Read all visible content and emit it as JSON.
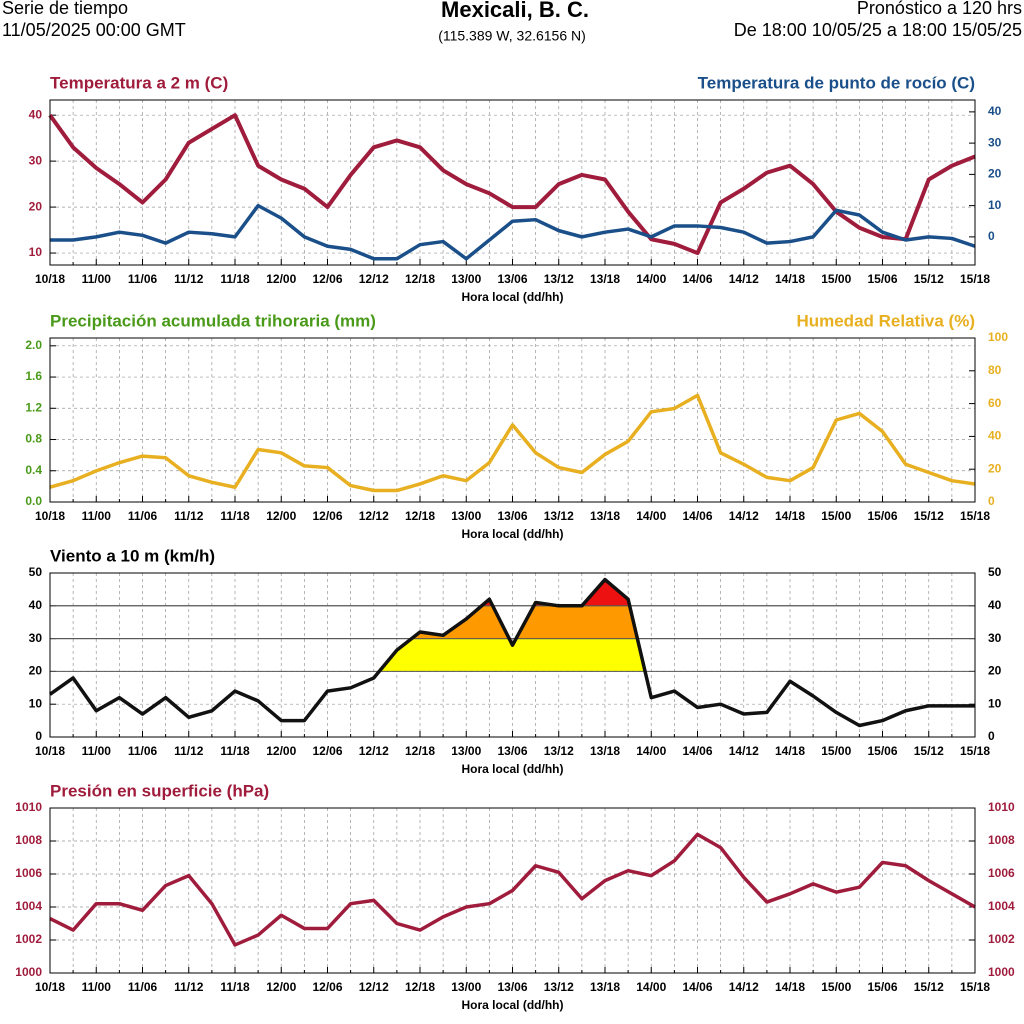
{
  "header": {
    "left_1": "Serie de tiempo",
    "left_2": "11/05/2025 00:00 GMT",
    "title": "Mexicali, B. C.",
    "subtitle": "(115.389 W, 32.6156 N)",
    "right_1": "Pronóstico a 120 hrs",
    "right_2": "De 18:00 10/05/25 a 18:00 15/05/25"
  },
  "chart_data": [
    {
      "type": "line",
      "title": "Temperatura a 2 m (C)",
      "title_color": "#a01c3c",
      "title_right": "Temperatura de punto de rocío (C)",
      "title_right_color": "#1a4f8a",
      "categories": [
        "10/18",
        null,
        "11/00",
        null,
        "11/06",
        null,
        "11/12",
        null,
        "11/18",
        null,
        "12/00",
        null,
        "12/06",
        null,
        "12/12",
        null,
        "12/18",
        null,
        "13/00",
        null,
        "13/06",
        null,
        "13/12",
        null,
        "13/18",
        null,
        "14/00",
        null,
        "14/06",
        null,
        "14/12",
        null,
        "14/18",
        null,
        "15/00",
        null,
        "15/06",
        null,
        "15/12",
        null,
        "15/18"
      ],
      "xlabel": "Hora local (dd/hh)",
      "ylim": [
        7.4,
        43.3
      ],
      "yticks": [
        10,
        20,
        30,
        40
      ],
      "y2lim": [
        -9,
        43.8
      ],
      "y2ticks": [
        0,
        10,
        20,
        30,
        40
      ],
      "tick_color": "#a01c3c",
      "tick2_color": "#1a4f8a",
      "series": [
        {
          "color": "#a01c3c",
          "values": [
            40,
            33,
            28.5,
            25,
            21,
            26,
            34,
            37,
            40,
            29,
            26,
            24,
            20,
            27,
            33,
            34.5,
            33,
            28,
            25,
            23,
            20,
            20,
            25,
            27,
            26,
            19,
            13,
            12,
            10,
            21,
            24,
            27.5,
            29,
            25,
            19,
            15.5,
            13.5,
            13,
            26,
            29,
            31
          ]
        },
        {
          "color": "#1a4f8a",
          "axis": "y2",
          "values": [
            -1,
            -1,
            0,
            1.5,
            0.5,
            -2,
            1.5,
            1,
            0,
            10,
            6,
            0,
            -3,
            -4,
            -7,
            -7,
            -2.5,
            -1.5,
            -7,
            -1,
            5,
            5.5,
            2,
            0,
            1.5,
            2.5,
            0,
            3.5,
            3.5,
            3,
            1.5,
            -2,
            -1.5,
            0,
            8.5,
            7,
            1.5,
            -1,
            0,
            -0.5,
            -3
          ]
        }
      ]
    },
    {
      "type": "line",
      "title": "Precipitación acumulada trihoraria (mm)",
      "title_color": "#4a9a1a",
      "title_right": "Humedad Relativa (%)",
      "title_right_color": "#e8b020",
      "categories": [
        "10/18",
        null,
        "11/00",
        null,
        "11/06",
        null,
        "11/12",
        null,
        "11/18",
        null,
        "12/00",
        null,
        "12/06",
        null,
        "12/12",
        null,
        "12/18",
        null,
        "13/00",
        null,
        "13/06",
        null,
        "13/12",
        null,
        "13/18",
        null,
        "14/00",
        null,
        "14/06",
        null,
        "14/12",
        null,
        "14/18",
        null,
        "15/00",
        null,
        "15/06",
        null,
        "15/12",
        null,
        "15/18"
      ],
      "xlabel": "Hora local (dd/hh)",
      "ylim": [
        0,
        2.1
      ],
      "yticks": [
        {
          "value": 0,
          "label": "0.0"
        },
        0.4,
        0.8,
        1.2,
        1.6,
        {
          "value": 2,
          "label": "2.0"
        }
      ],
      "y2lim": [
        0,
        100
      ],
      "y2ticks": [
        0,
        20,
        40,
        60,
        80,
        100
      ],
      "tick_color": "#4a9a1a",
      "tick2_color": "#e8b020",
      "series": [
        {
          "color": "#e8b020",
          "axis": "y2",
          "values": [
            9,
            13,
            19,
            24,
            28,
            27,
            16,
            12,
            9,
            32,
            30,
            22,
            21,
            10,
            7,
            7,
            11,
            16,
            13,
            24,
            47,
            30,
            21,
            18,
            29,
            37,
            55,
            57,
            65,
            30,
            23,
            15,
            13,
            21,
            50,
            54,
            43,
            23,
            18,
            13,
            11
          ]
        }
      ]
    },
    {
      "type": "line",
      "title": "Viento a 10 m (km/h)",
      "title_color": "#000000",
      "categories": [
        "10/18",
        null,
        "11/00",
        null,
        "11/06",
        null,
        "11/12",
        null,
        "11/18",
        null,
        "12/00",
        null,
        "12/06",
        null,
        "12/12",
        null,
        "12/18",
        null,
        "13/00",
        null,
        "13/06",
        null,
        "13/12",
        null,
        "13/18",
        null,
        "14/00",
        null,
        "14/06",
        null,
        "14/12",
        null,
        "14/18",
        null,
        "15/00",
        null,
        "15/06",
        null,
        "15/12",
        null,
        "15/18"
      ],
      "xlabel": "Hora local (dd/hh)",
      "ylim": [
        0,
        50
      ],
      "yticks": [
        0,
        10,
        20,
        30,
        40,
        50
      ],
      "y2lim": [
        0,
        50
      ],
      "y2ticks": [
        0,
        10,
        20,
        30,
        40,
        50
      ],
      "tick_color": "#000000",
      "tick2_color": "#000000",
      "thresholds": [
        {
          "from": 20,
          "to": 30,
          "color": "#ffff00"
        },
        {
          "from": 30,
          "to": 40,
          "color": "#ff9900"
        },
        {
          "from": 40,
          "to": 50,
          "color": "#ee1111"
        }
      ],
      "series": [
        {
          "color": "#111111",
          "values": [
            13,
            18,
            8,
            12,
            7,
            12,
            6,
            8,
            14,
            11,
            5,
            5,
            14,
            15,
            18,
            26.5,
            32,
            31,
            36,
            42,
            28,
            41,
            40,
            40,
            48,
            42,
            12,
            14,
            9,
            10,
            7,
            7.5,
            17,
            12.5,
            7.5,
            3.5,
            5,
            8,
            9.5,
            9.5,
            9.5
          ]
        }
      ]
    },
    {
      "type": "line",
      "title": "Presión en superficie (hPa)",
      "title_color": "#a01c3c",
      "categories": [
        "10/18",
        null,
        "11/00",
        null,
        "11/06",
        null,
        "11/12",
        null,
        "11/18",
        null,
        "12/00",
        null,
        "12/06",
        null,
        "12/12",
        null,
        "12/18",
        null,
        "13/00",
        null,
        "13/06",
        null,
        "13/12",
        null,
        "13/18",
        null,
        "14/00",
        null,
        "14/06",
        null,
        "14/12",
        null,
        "14/18",
        null,
        "15/00",
        null,
        "15/06",
        null,
        "15/12",
        null,
        "15/18"
      ],
      "xlabel": "Hora local (dd/hh)",
      "ylim": [
        1000,
        1010
      ],
      "yticks": [
        1000,
        1002,
        1004,
        1006,
        1008,
        1010
      ],
      "y2lim": [
        1000,
        1010
      ],
      "y2ticks": [
        1000,
        1002,
        1004,
        1006,
        1008,
        1010
      ],
      "tick_color": "#a01c3c",
      "tick2_color": "#a01c3c",
      "series": [
        {
          "color": "#a01c3c",
          "values": [
            1003.3,
            1002.6,
            1004.2,
            1004.2,
            1003.8,
            1005.3,
            1005.9,
            1004.2,
            1001.7,
            1002.3,
            1003.5,
            1002.7,
            1002.7,
            1004.2,
            1004.4,
            1003,
            1002.6,
            1003.4,
            1004,
            1004.2,
            1005,
            1006.5,
            1006.1,
            1004.5,
            1005.6,
            1006.2,
            1005.9,
            1006.8,
            1008.4,
            1007.6,
            1005.8,
            1004.3,
            1004.8,
            1005.4,
            1004.9,
            1005.2,
            1006.7,
            1006.5,
            1005.6,
            1004.8,
            1004
          ]
        }
      ]
    }
  ]
}
